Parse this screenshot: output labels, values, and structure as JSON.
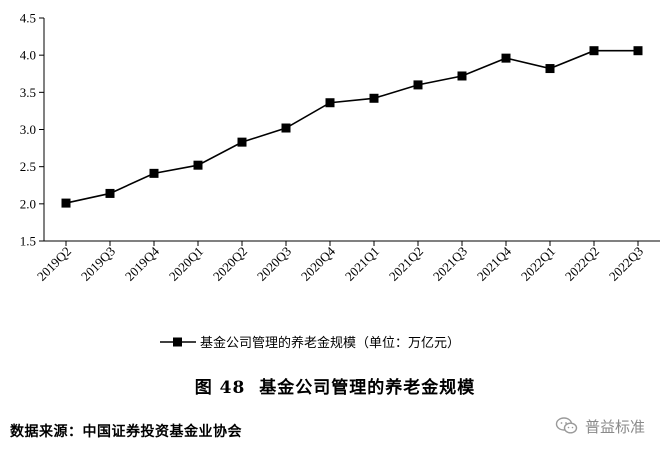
{
  "chart_data": {
    "type": "line",
    "categories": [
      "2019Q2",
      "2019Q3",
      "2019Q4",
      "2020Q1",
      "2020Q2",
      "2020Q3",
      "2020Q4",
      "2021Q1",
      "2021Q2",
      "2021Q3",
      "2021Q4",
      "2022Q1",
      "2022Q2",
      "2022Q3"
    ],
    "series": [
      {
        "name": "基金公司管理的养老金规模（单位：万亿元）",
        "values": [
          2.01,
          2.14,
          2.41,
          2.52,
          2.83,
          3.02,
          3.36,
          3.42,
          3.6,
          3.72,
          3.96,
          3.82,
          4.06,
          4.06
        ]
      }
    ],
    "ylim": [
      1.5,
      4.5
    ],
    "yticks": [
      "1.5",
      "2.0",
      "2.5",
      "3.0",
      "3.5",
      "4.0",
      "4.5"
    ],
    "grid": false,
    "legend_position": "bottom-center",
    "marker": "square",
    "line_color": "#000000"
  },
  "caption": {
    "figure_no": "图 48",
    "title": "基金公司管理的养老金规模"
  },
  "source": "数据来源：中国证券投资基金业协会",
  "watermark": {
    "text": "普益标准",
    "icon": "wechat-icon"
  }
}
